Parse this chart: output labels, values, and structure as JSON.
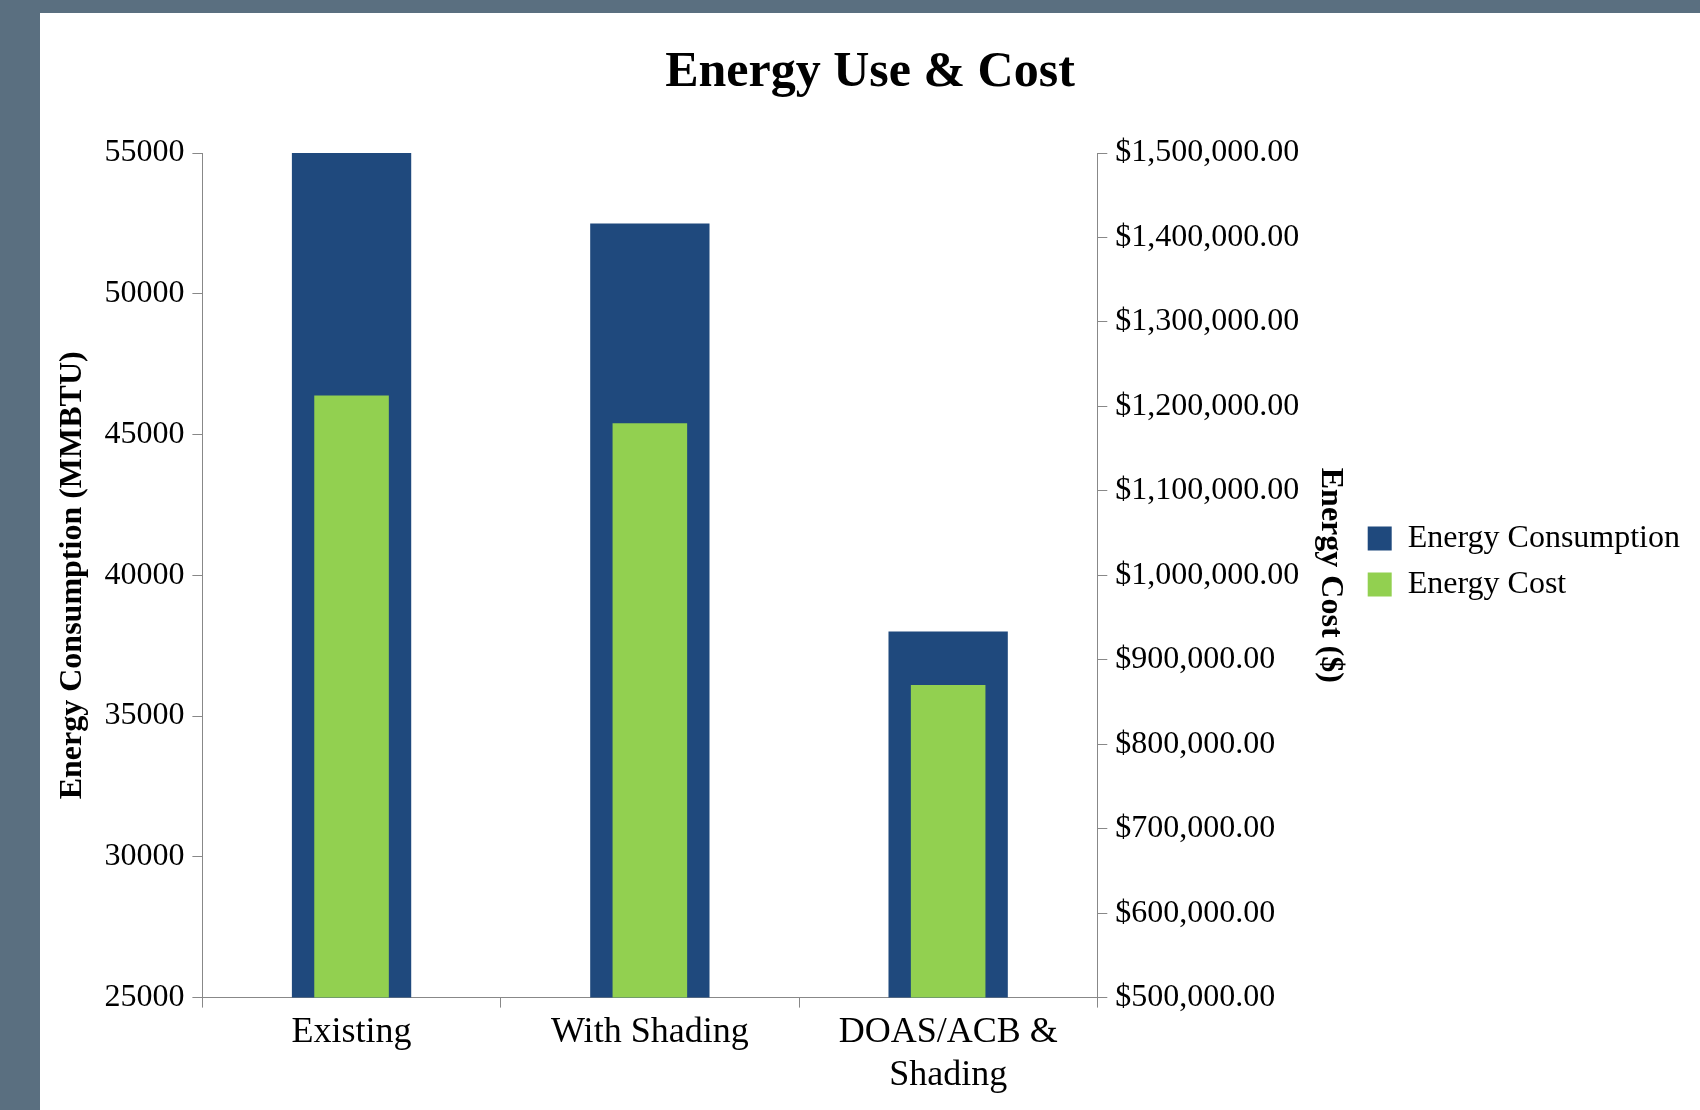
{
  "chart_data": {
    "type": "bar",
    "title": "Energy Use & Cost",
    "ylabel": "Energy Consumption (MMBTU)",
    "y2label": "Energy Cost ($)",
    "categories": [
      "Existing",
      "With Shading",
      "DOAS/ACB & Shading"
    ],
    "series": [
      {
        "name": "Energy Consumption",
        "color": "#1f497d",
        "values": [
          55000,
          52500,
          38000
        ]
      },
      {
        "name": "Energy Cost",
        "color": "#92d050",
        "values": [
          1213000,
          1180000,
          870000
        ],
        "axis": "y2"
      }
    ],
    "ylim": [
      25000,
      55000
    ],
    "yticks": [
      25000,
      30000,
      35000,
      40000,
      45000,
      50000,
      55000
    ],
    "y2lim": [
      500000,
      1500000
    ],
    "y2ticks": [
      {
        "value": 500000,
        "label": "$500,000.00"
      },
      {
        "value": 600000,
        "label": "$600,000.00"
      },
      {
        "value": 700000,
        "label": "$700,000.00"
      },
      {
        "value": 800000,
        "label": "$800,000.00"
      },
      {
        "value": 900000,
        "label": "$900,000.00"
      },
      {
        "value": 1000000,
        "label": "$1,000,000.00"
      },
      {
        "value": 1100000,
        "label": "$1,100,000.00"
      },
      {
        "value": 1200000,
        "label": "$1,200,000.00"
      },
      {
        "value": 1300000,
        "label": "$1,300,000.00"
      },
      {
        "value": 1400000,
        "label": "$1,400,000.00"
      },
      {
        "value": 1500000,
        "label": "$1,500,000.00"
      }
    ],
    "grid": false,
    "legend": "right"
  }
}
